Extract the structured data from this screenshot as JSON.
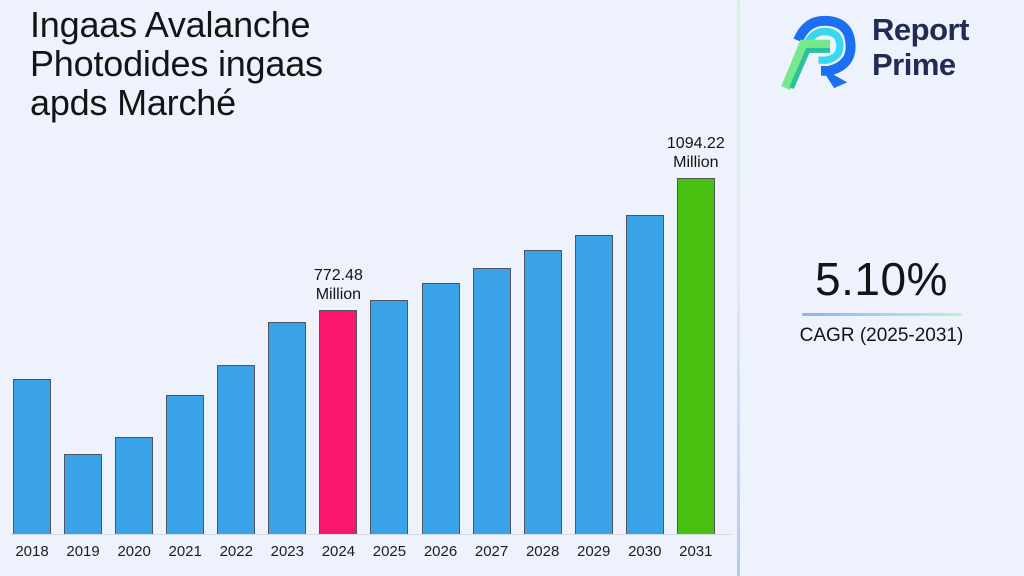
{
  "title": "Ingaas Avalanche Photodides ingaas apds Marché",
  "logo": {
    "icon": "report-prime-logo-icon",
    "line1": "Report",
    "line2": "Prime",
    "brand_color": "#222b54"
  },
  "stats": {
    "cagr_value": "5.10%",
    "cagr_label": "CAGR (2025-2031)",
    "underline_gradient": [
      "#8db1f5",
      "#b9f5c8"
    ]
  },
  "chart_data": {
    "type": "bar",
    "title": "Ingaas Avalanche Photodides ingaas apds Marché",
    "categories": [
      "2018",
      "2019",
      "2020",
      "2021",
      "2022",
      "2023",
      "2024",
      "2025",
      "2026",
      "2027",
      "2028",
      "2029",
      "2030",
      "2031"
    ],
    "values": [
      604,
      421,
      463,
      565,
      638,
      743,
      772.48,
      797,
      838,
      875,
      919,
      955,
      1004,
      1094.22
    ],
    "unit": "Million",
    "annotations": [
      {
        "category": "2024",
        "text": "772.48 Million"
      },
      {
        "category": "2031",
        "text": "1094.22 Million"
      }
    ],
    "bar_colors": {
      "default": "#3aa2e8",
      "2024": "#f9186c",
      "2031": "#49c110"
    },
    "bar_edge_color": "#54555a",
    "y_baseline_value": 226.4,
    "grid": false,
    "legend": false,
    "xlabel": "",
    "ylabel": ""
  }
}
